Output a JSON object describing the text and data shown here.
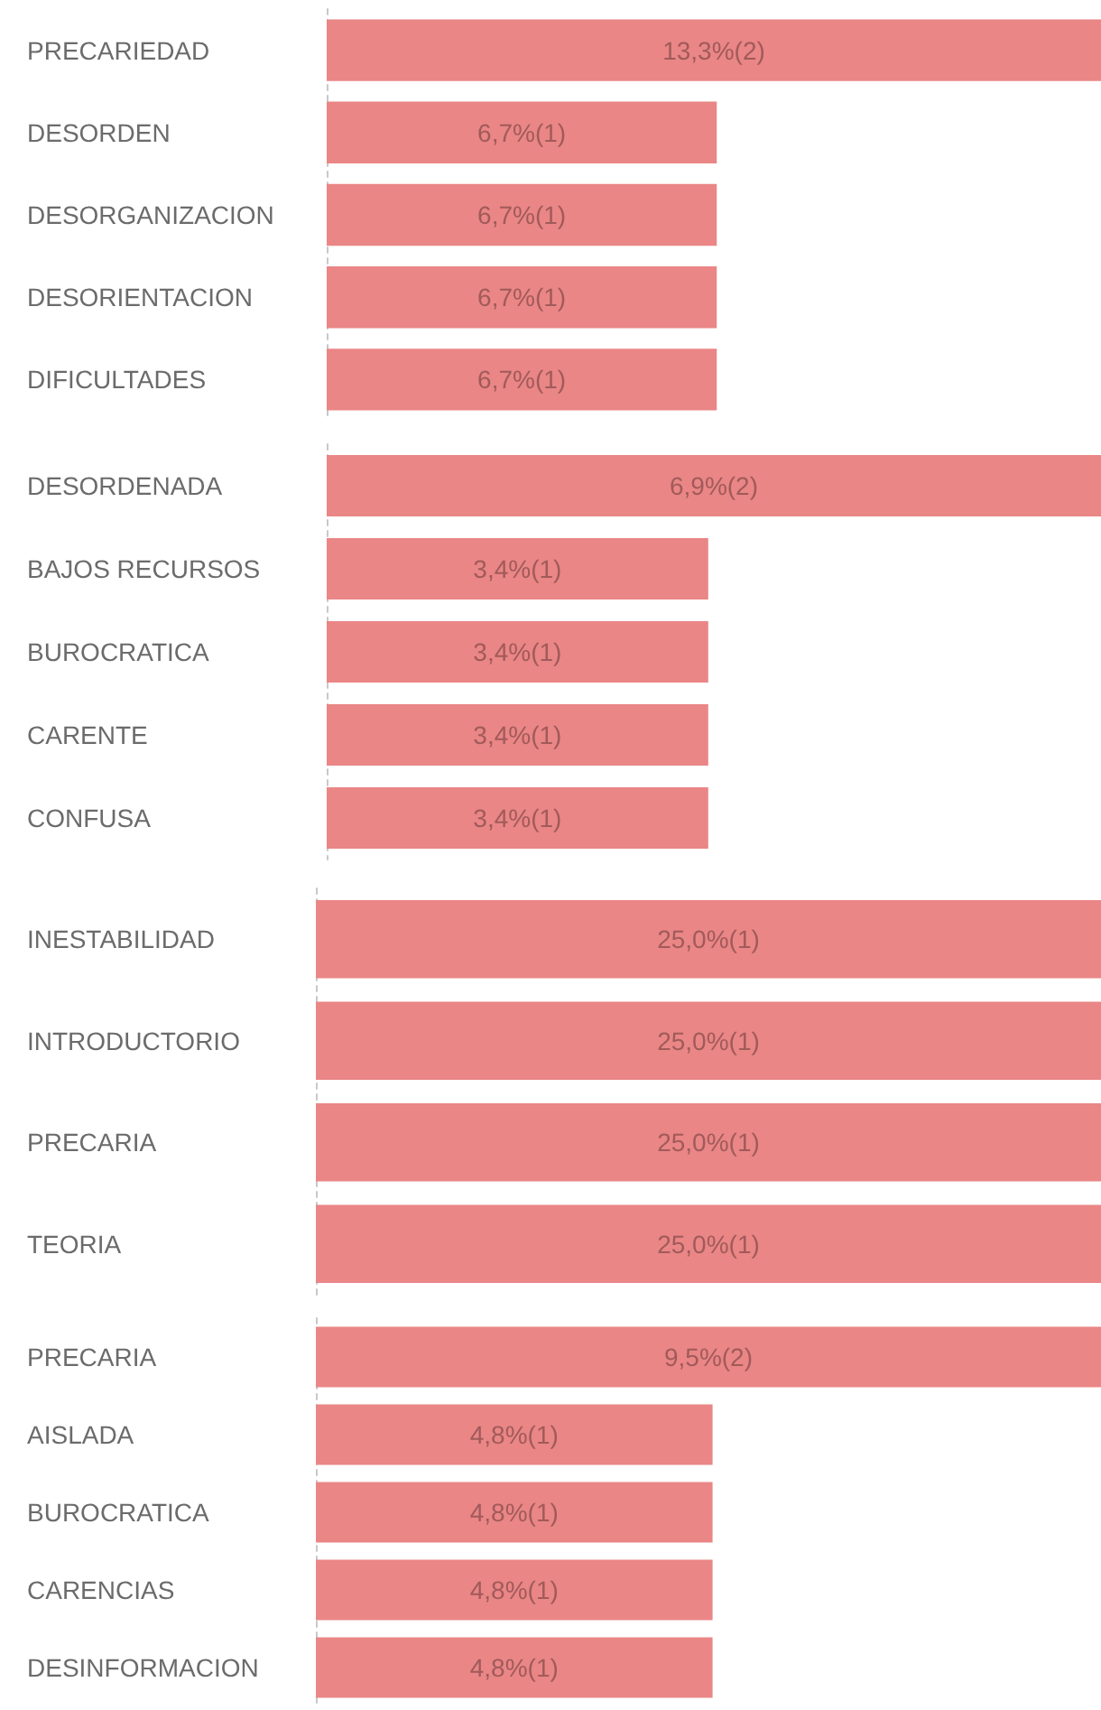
{
  "chart_data": [
    {
      "type": "bar",
      "orientation": "horizontal",
      "categories": [
        "PRECARIEDAD",
        "DESORDEN",
        "DESORGANIZACION",
        "DESORIENTACION",
        "DIFICULTADES"
      ],
      "values": [
        13.3,
        6.7,
        6.7,
        6.7,
        6.7
      ],
      "value_labels": [
        "13,3%(2)",
        "6,7%(1)",
        "6,7%(1)",
        "6,7%(1)",
        "6,7%(1)"
      ],
      "color": "#ea8686",
      "tick_labels": "y"
    },
    {
      "type": "bar",
      "orientation": "horizontal",
      "categories": [
        "DESORDENADA",
        "BAJOS RECURSOS",
        "BUROCRATICA",
        "CARENTE",
        "CONFUSA"
      ],
      "values": [
        6.9,
        3.4,
        3.4,
        3.4,
        3.4
      ],
      "value_labels": [
        "6,9%(2)",
        "3,4%(1)",
        "3,4%(1)",
        "3,4%(1)",
        "3,4%(1)"
      ],
      "color": "#ea8686",
      "tick_labels": "y"
    },
    {
      "type": "bar",
      "orientation": "horizontal",
      "categories": [
        "INESTABILIDAD",
        "INTRODUCTORIO",
        "PRECARIA",
        "TEORIA"
      ],
      "values": [
        25.0,
        25.0,
        25.0,
        25.0
      ],
      "value_labels": [
        "25,0%(1)",
        "25,0%(1)",
        "25,0%(1)",
        "25,0%(1)"
      ],
      "color": "#ea8686",
      "tick_labels": "y"
    },
    {
      "type": "bar",
      "orientation": "horizontal",
      "categories": [
        "PRECARIA",
        "AISLADA",
        "BUROCRATICA",
        "CARENCIAS",
        "DESINFORMACION"
      ],
      "values": [
        9.5,
        4.8,
        4.8,
        4.8,
        4.8
      ],
      "value_labels": [
        "9,5%(2)",
        "4,8%(1)",
        "4,8%(1)",
        "4,8%(1)",
        "4,8%(1)"
      ],
      "color": "#ea8686",
      "tick_labels": "y"
    }
  ]
}
